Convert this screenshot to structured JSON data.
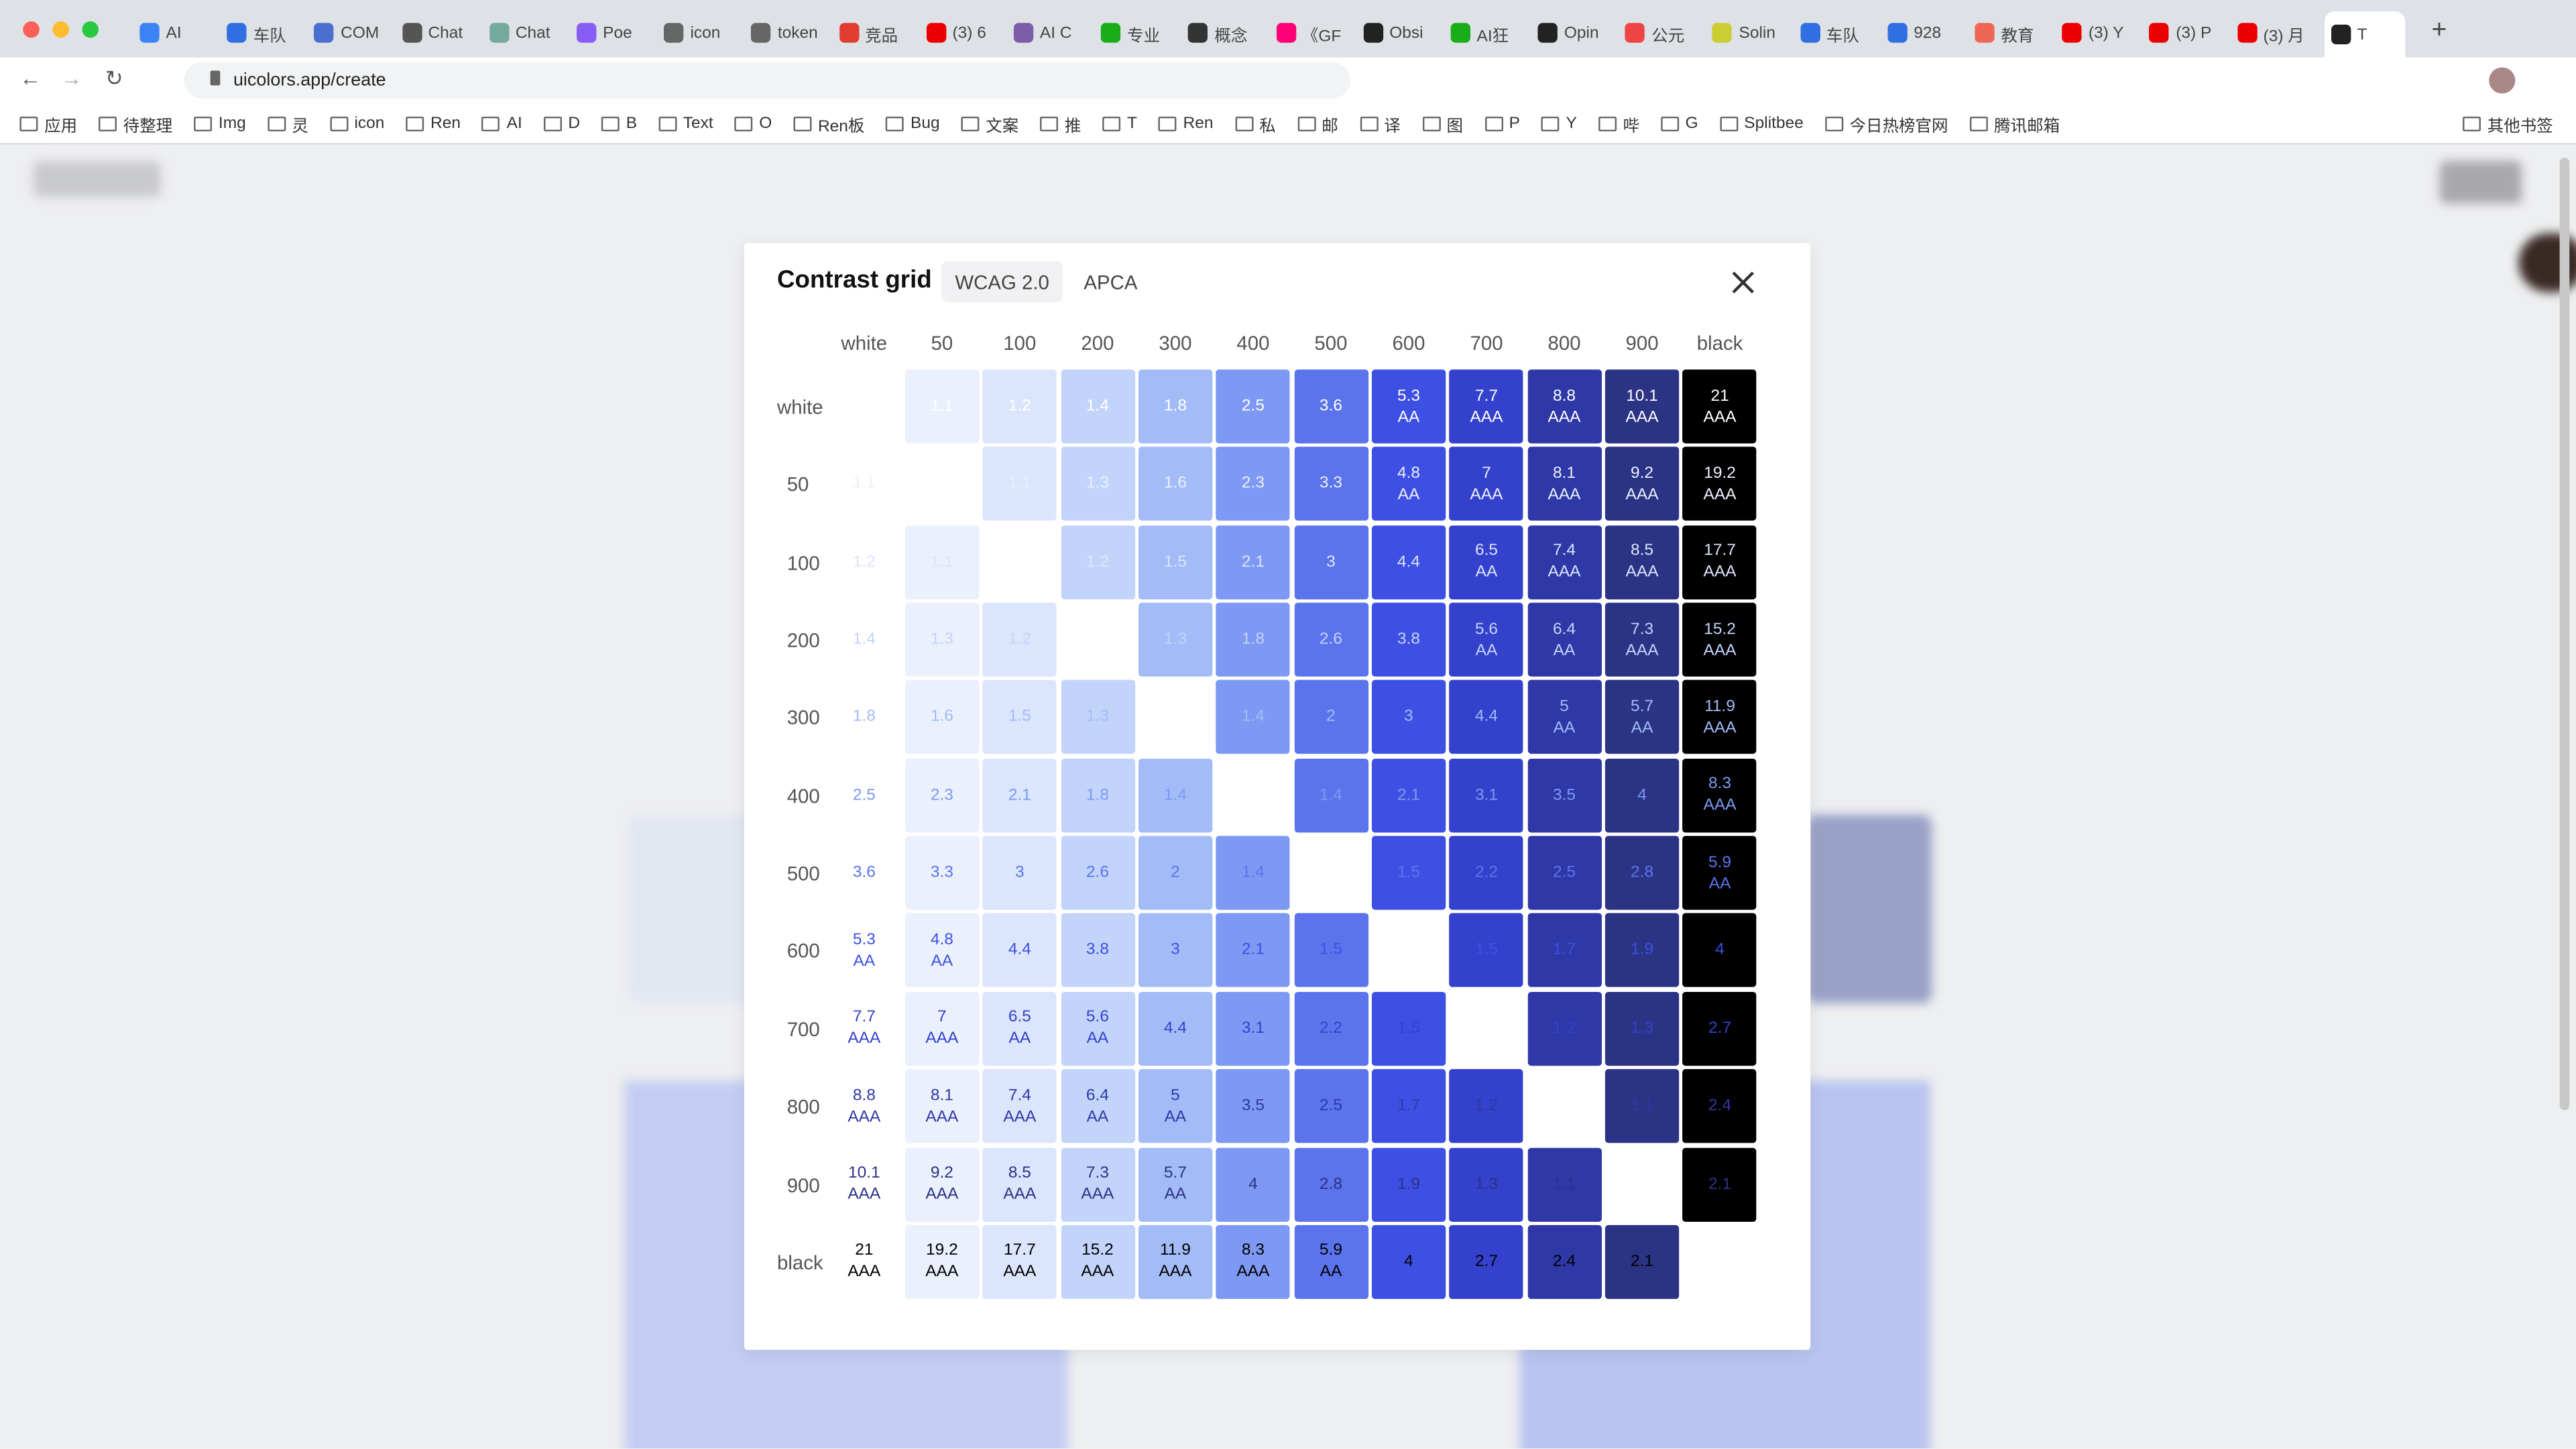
{
  "browser": {
    "tabs": [
      "AI",
      "车队",
      "COM",
      "Chat",
      "Chat",
      "Poe",
      "icon",
      "token",
      "竞品",
      "(3) 6",
      "AI C",
      "专业",
      "概念",
      "《GF",
      "Obsi",
      "AI狂",
      "Opin",
      "公元",
      "Solin",
      "车队",
      "928",
      "教育",
      "(3) Y",
      "(3) P",
      "(3) 月",
      "T"
    ],
    "url": "uicolors.app/create",
    "bookmarks": [
      "应用",
      "待整理",
      "Img",
      "灵",
      "icon",
      "Ren",
      "AI",
      "D",
      "B",
      "Text",
      "O",
      "Ren板",
      "Bug",
      "文案",
      "推",
      "T",
      "Ren",
      "私",
      "邮",
      "译",
      "图",
      "P",
      "Y",
      "哔",
      "G",
      "Splitbee",
      "今日热榜官网",
      "腾讯邮箱",
      "其他书签"
    ]
  },
  "modal": {
    "title": "Contrast grid",
    "modes": [
      "WCAG 2.0",
      "APCA"
    ],
    "labels": [
      "white",
      "50",
      "100",
      "200",
      "300",
      "400",
      "500",
      "600",
      "700",
      "800",
      "900",
      "black"
    ],
    "swatches": [
      "#ffffff",
      "#ebf0fd",
      "#dbe5fc",
      "#c3d4fb",
      "#a3bcf8",
      "#7d99f3",
      "#5b74ec",
      "#3e50e3",
      "#3441cc",
      "#2e38a6",
      "#2b3384",
      "#000000"
    ],
    "cells": [
      [
        null,
        {
          "value": 1.1
        },
        {
          "value": 1.2
        },
        {
          "value": 1.4
        },
        {
          "value": 1.8
        },
        {
          "value": 2.5
        },
        {
          "value": 3.6
        },
        {
          "value": 5.3,
          "level": "AA"
        },
        {
          "value": 7.7,
          "level": "AAA"
        },
        {
          "value": 8.8,
          "level": "AAA"
        },
        {
          "value": 10.1,
          "level": "AAA"
        },
        {
          "value": 21,
          "level": "AAA"
        }
      ],
      [
        {
          "value": 1.1
        },
        null,
        {
          "value": 1.1
        },
        {
          "value": 1.3
        },
        {
          "value": 1.6
        },
        {
          "value": 2.3
        },
        {
          "value": 3.3
        },
        {
          "value": 4.8,
          "level": "AA"
        },
        {
          "value": 7,
          "level": "AAA"
        },
        {
          "value": 8.1,
          "level": "AAA"
        },
        {
          "value": 9.2,
          "level": "AAA"
        },
        {
          "value": 19.2,
          "level": "AAA"
        }
      ],
      [
        {
          "value": 1.2
        },
        {
          "value": 1.1
        },
        null,
        {
          "value": 1.2
        },
        {
          "value": 1.5
        },
        {
          "value": 2.1
        },
        {
          "value": 3
        },
        {
          "value": 4.4
        },
        {
          "value": 6.5,
          "level": "AA"
        },
        {
          "value": 7.4,
          "level": "AAA"
        },
        {
          "value": 8.5,
          "level": "AAA"
        },
        {
          "value": 17.7,
          "level": "AAA"
        }
      ],
      [
        {
          "value": 1.4
        },
        {
          "value": 1.3
        },
        {
          "value": 1.2
        },
        null,
        {
          "value": 1.3
        },
        {
          "value": 1.8
        },
        {
          "value": 2.6
        },
        {
          "value": 3.8
        },
        {
          "value": 5.6,
          "level": "AA"
        },
        {
          "value": 6.4,
          "level": "AA"
        },
        {
          "value": 7.3,
          "level": "AAA"
        },
        {
          "value": 15.2,
          "level": "AAA"
        }
      ],
      [
        {
          "value": 1.8
        },
        {
          "value": 1.6
        },
        {
          "value": 1.5
        },
        {
          "value": 1.3
        },
        null,
        {
          "value": 1.4
        },
        {
          "value": 2
        },
        {
          "value": 3
        },
        {
          "value": 4.4
        },
        {
          "value": 5,
          "level": "AA"
        },
        {
          "value": 5.7,
          "level": "AA"
        },
        {
          "value": 11.9,
          "level": "AAA"
        }
      ],
      [
        {
          "value": 2.5
        },
        {
          "value": 2.3
        },
        {
          "value": 2.1
        },
        {
          "value": 1.8
        },
        {
          "value": 1.4
        },
        null,
        {
          "value": 1.4
        },
        {
          "value": 2.1
        },
        {
          "value": 3.1
        },
        {
          "value": 3.5
        },
        {
          "value": 4
        },
        {
          "value": 8.3,
          "level": "AAA"
        }
      ],
      [
        {
          "value": 3.6
        },
        {
          "value": 3.3
        },
        {
          "value": 3
        },
        {
          "value": 2.6
        },
        {
          "value": 2
        },
        {
          "value": 1.4
        },
        null,
        {
          "value": 1.5
        },
        {
          "value": 2.2
        },
        {
          "value": 2.5
        },
        {
          "value": 2.8
        },
        {
          "value": 5.9,
          "level": "AA"
        }
      ],
      [
        {
          "value": 5.3,
          "level": "AA"
        },
        {
          "value": 4.8,
          "level": "AA"
        },
        {
          "value": 4.4
        },
        {
          "value": 3.8
        },
        {
          "value": 3
        },
        {
          "value": 2.1
        },
        {
          "value": 1.5
        },
        null,
        {
          "value": 1.5
        },
        {
          "value": 1.7
        },
        {
          "value": 1.9
        },
        {
          "value": 4
        }
      ],
      [
        {
          "value": 7.7,
          "level": "AAA"
        },
        {
          "value": 7,
          "level": "AAA"
        },
        {
          "value": 6.5,
          "level": "AA"
        },
        {
          "value": 5.6,
          "level": "AA"
        },
        {
          "value": 4.4
        },
        {
          "value": 3.1
        },
        {
          "value": 2.2
        },
        {
          "value": 1.5
        },
        null,
        {
          "value": 1.2
        },
        {
          "value": 1.3
        },
        {
          "value": 2.7
        }
      ],
      [
        {
          "value": 8.8,
          "level": "AAA"
        },
        {
          "value": 8.1,
          "level": "AAA"
        },
        {
          "value": 7.4,
          "level": "AAA"
        },
        {
          "value": 6.4,
          "level": "AA"
        },
        {
          "value": 5,
          "level": "AA"
        },
        {
          "value": 3.5
        },
        {
          "value": 2.5
        },
        {
          "value": 1.7
        },
        {
          "value": 1.2
        },
        null,
        {
          "value": 1.1
        },
        {
          "value": 2.4
        }
      ],
      [
        {
          "value": 10.1,
          "level": "AAA"
        },
        {
          "value": 9.2,
          "level": "AAA"
        },
        {
          "value": 8.5,
          "level": "AAA"
        },
        {
          "value": 7.3,
          "level": "AAA"
        },
        {
          "value": 5.7,
          "level": "AA"
        },
        {
          "value": 4
        },
        {
          "value": 2.8
        },
        {
          "value": 1.9
        },
        {
          "value": 1.3
        },
        {
          "value": 1.1
        },
        null,
        {
          "value": 2.1
        }
      ],
      [
        {
          "value": 21,
          "level": "AAA"
        },
        {
          "value": 19.2,
          "level": "AAA"
        },
        {
          "value": 17.7,
          "level": "AAA"
        },
        {
          "value": 15.2,
          "level": "AAA"
        },
        {
          "value": 11.9,
          "level": "AAA"
        },
        {
          "value": 8.3,
          "level": "AAA"
        },
        {
          "value": 5.9,
          "level": "AA"
        },
        {
          "value": 4
        },
        {
          "value": 2.7
        },
        {
          "value": 2.4
        },
        {
          "value": 2.1
        },
        null
      ]
    ]
  }
}
